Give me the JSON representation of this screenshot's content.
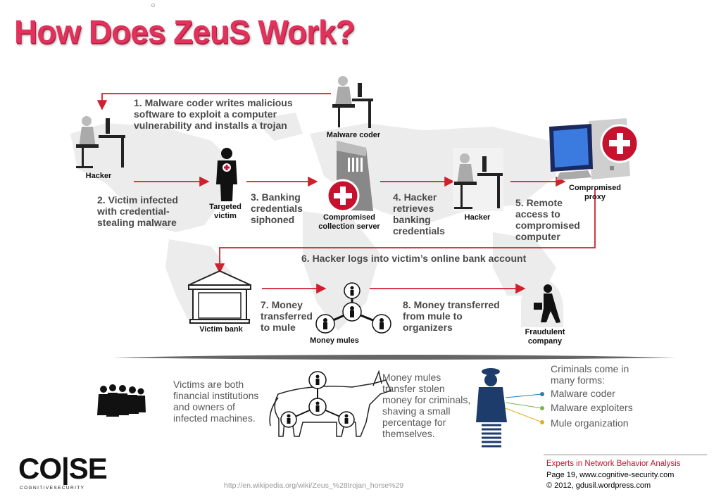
{
  "header": {
    "bullet": "○",
    "title": "How Does ZeuS Work?"
  },
  "diagram": {
    "steps": {
      "s1": "1. Malware coder writes malicious software to exploit a computer vulnerability and installs a trojan",
      "s2": "2. Victim infected with credential-stealing malware",
      "s3": "3. Banking credentials siphoned",
      "s4": "4. Hacker retrieves banking credentials",
      "s5": "5. Remote access to compromised computer",
      "s6": "6. Hacker logs into victim’s online bank account",
      "s7": "7. Money transferred to mule",
      "s8": "8. Money transferred from mule to organizers"
    },
    "labels": {
      "hacker_left": "Hacker",
      "malware_coder": "Malware coder",
      "targeted_victim": "Targeted victim",
      "collection_server": "Compromised collection server",
      "hacker_right": "Hacker",
      "proxy": "Compromised proxy",
      "victim_bank": "Victim bank",
      "money_mules": "Money mules",
      "fraudulent_company": "Fraudulent company"
    }
  },
  "bottom": {
    "victims_text": "Victims are both financial institutions and owners of infected machines.",
    "mules_text": "Money mules transfer stolen money for criminals, shaving a small percentage for themselves.",
    "criminals_intro": "Criminals come in many forms:",
    "criminal_forms": [
      "Malware coder",
      "Malware exploiters",
      "Mule organization"
    ]
  },
  "footer": {
    "logo_top": "CO|SE",
    "logo_bottom": "COGNITIVESECURITY",
    "url": "http://en.wikipedia.org/wiki/Zeus_%28trojan_horse%29",
    "tagline": "Experts in Network Behavior Analysis",
    "page": "Page 19, www.cognitive-security.com",
    "copyright": "© 2012, gdusil.wordpress.com"
  },
  "colors": {
    "accent": "#e0325a",
    "arrow": "#d0202e",
    "bullet_green": "#7ab648",
    "bullet_yellow": "#e0b020",
    "bullet_blue": "#2a7fb0"
  }
}
